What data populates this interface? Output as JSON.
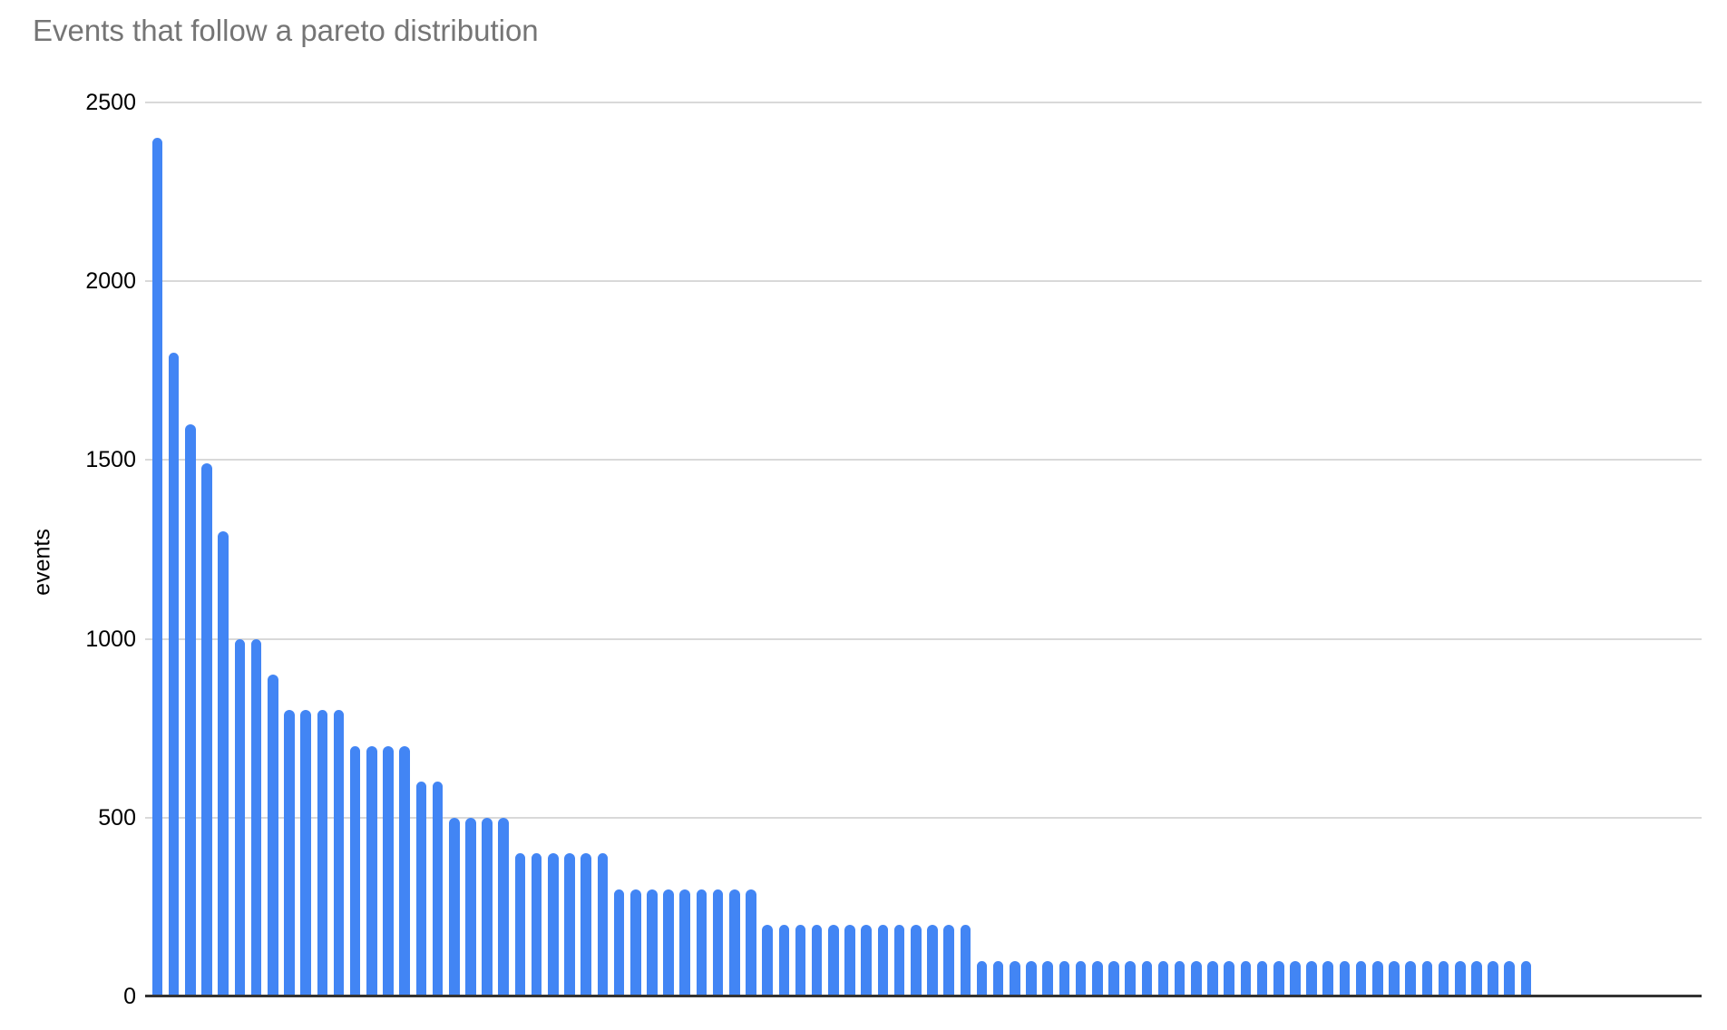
{
  "chart_data": {
    "type": "bar",
    "title": "Events that follow a pareto distribution",
    "ylabel": "events",
    "xlabel": "",
    "y_ticks": [
      2500,
      2000,
      1500,
      1000,
      500,
      0
    ],
    "ylim": [
      0,
      2500
    ],
    "grid": "horizontal gridlines every 500",
    "legend_position": "none",
    "x_tick_labels": [],
    "colors": {
      "bar": "#4285f4",
      "title_text": "#757575",
      "axis_line": "#333333",
      "gridline": "#d9d9d9",
      "tick_text": "#000000",
      "background": "#ffffff"
    },
    "values": [
      2400,
      1800,
      1600,
      1490,
      1300,
      1000,
      1000,
      900,
      800,
      800,
      800,
      800,
      700,
      700,
      700,
      700,
      600,
      600,
      500,
      500,
      500,
      500,
      400,
      400,
      400,
      400,
      400,
      400,
      300,
      300,
      300,
      300,
      300,
      300,
      300,
      300,
      300,
      200,
      200,
      200,
      200,
      200,
      200,
      200,
      200,
      200,
      200,
      200,
      200,
      200,
      100,
      100,
      100,
      100,
      100,
      100,
      100,
      100,
      100,
      100,
      100,
      100,
      100,
      100,
      100,
      100,
      100,
      100,
      100,
      100,
      100,
      100,
      100,
      100,
      100,
      100,
      100,
      100,
      100,
      100,
      100,
      100,
      100,
      100
    ]
  }
}
